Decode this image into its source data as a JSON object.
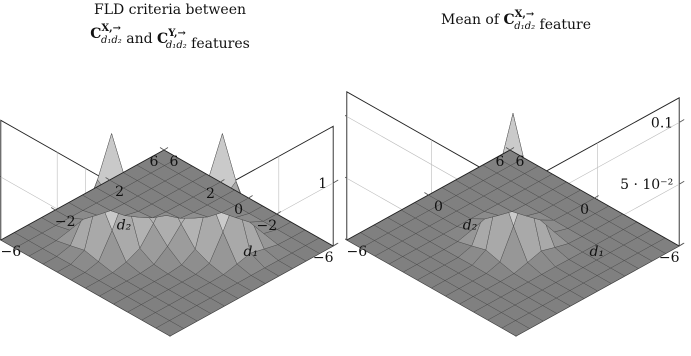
{
  "chart_data": [
    {
      "type": "surface",
      "title": [
        "FLD criteria between",
        "C^{X,→}_{d1d2} and C^{Y,→}_{d1d2} features"
      ],
      "title_parts": {
        "line1": "FLD criteria between",
        "sym1_base": "C",
        "sym1_sup": "X,→",
        "sym1_sub": "d₁d₂",
        "mid": " and ",
        "sym2_base": "C",
        "sym2_sup": "Y,→",
        "sym2_sub": "d₁d₂",
        "tail": " features"
      },
      "xlabel": "d₁",
      "ylabel": "d₂",
      "x_ticks": [
        -6,
        -2,
        0,
        2,
        6
      ],
      "x_tick_labels": [
        "−6",
        "−2",
        "0",
        "2",
        "6"
      ],
      "y_ticks": [
        -6,
        -2,
        2,
        6
      ],
      "y_tick_labels": [
        "−6",
        "−2",
        "2",
        "6"
      ],
      "z_ticks": [
        0,
        1
      ],
      "z_tick_labels": [
        "0",
        "1"
      ],
      "xlim": [
        -6,
        6
      ],
      "ylim": [
        -6,
        6
      ],
      "zlim": [
        0,
        1.9
      ],
      "peaks": [
        {
          "d1": -2,
          "d2": 2,
          "value": 1.75
        },
        {
          "d1": 2,
          "d2": -2,
          "value": 1.72
        },
        {
          "d1": 0,
          "d2": 0,
          "value": 0.75
        }
      ],
      "colors": {
        "low": "#808080",
        "high": "#e8e8e8"
      }
    },
    {
      "type": "surface",
      "title": [
        "Mean of C^{X,→}_{d1d2} feature"
      ],
      "title_parts": {
        "pre": "Mean of ",
        "sym1_base": "C",
        "sym1_sup": "X,→",
        "sym1_sub": "d₁d₂",
        "tail": " feature"
      },
      "xlabel": "d₁",
      "ylabel": "d₂",
      "x_ticks": [
        -6,
        0,
        6
      ],
      "x_tick_labels": [
        "−6",
        "0",
        "6"
      ],
      "y_ticks": [
        -6,
        0,
        6
      ],
      "y_tick_labels": [
        "−6",
        "0",
        "6"
      ],
      "z_ticks": [
        0,
        0.05,
        0.1
      ],
      "z_tick_labels": [
        "0",
        "5 · 10⁻²",
        "0.1"
      ],
      "xlim": [
        -6,
        6
      ],
      "ylim": [
        -6,
        6
      ],
      "zlim": [
        0,
        0.12
      ],
      "peaks": [
        {
          "d1": 0,
          "d2": 0,
          "value": 0.105
        }
      ],
      "colors": {
        "low": "#808080",
        "high": "#e8e8e8"
      }
    }
  ]
}
